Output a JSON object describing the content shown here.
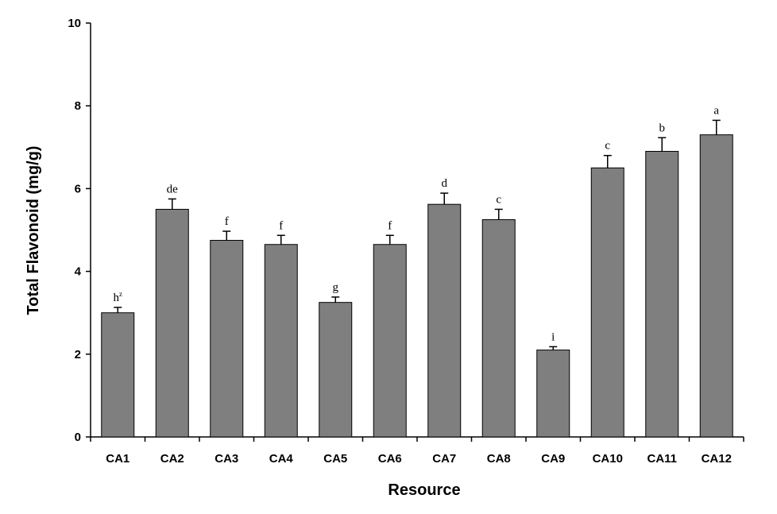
{
  "chart_data": {
    "type": "bar",
    "title": "",
    "xlabel": "Resource",
    "ylabel": "Total Flavonoid (mg/g)",
    "ylim": [
      0,
      10
    ],
    "yticks": [
      0,
      2,
      4,
      6,
      8,
      10
    ],
    "grid": false,
    "categories": [
      "CA1",
      "CA2",
      "CA3",
      "CA4",
      "CA5",
      "CA6",
      "CA7",
      "CA8",
      "CA9",
      "CA10",
      "CA11",
      "CA12"
    ],
    "values": [
      3.0,
      5.5,
      4.75,
      4.65,
      3.25,
      4.65,
      5.62,
      5.25,
      2.1,
      6.5,
      6.9,
      7.3
    ],
    "errors": [
      0.13,
      0.25,
      0.22,
      0.22,
      0.13,
      0.22,
      0.27,
      0.25,
      0.08,
      0.3,
      0.33,
      0.35
    ],
    "significance_letters": [
      "h",
      "de",
      "f",
      "f",
      "g",
      "f",
      "d",
      "c",
      "i",
      "c",
      "b",
      "a"
    ],
    "footnote_marker": "z",
    "colors": {
      "bar": "#7f7f7f",
      "edge": "#000000"
    }
  }
}
